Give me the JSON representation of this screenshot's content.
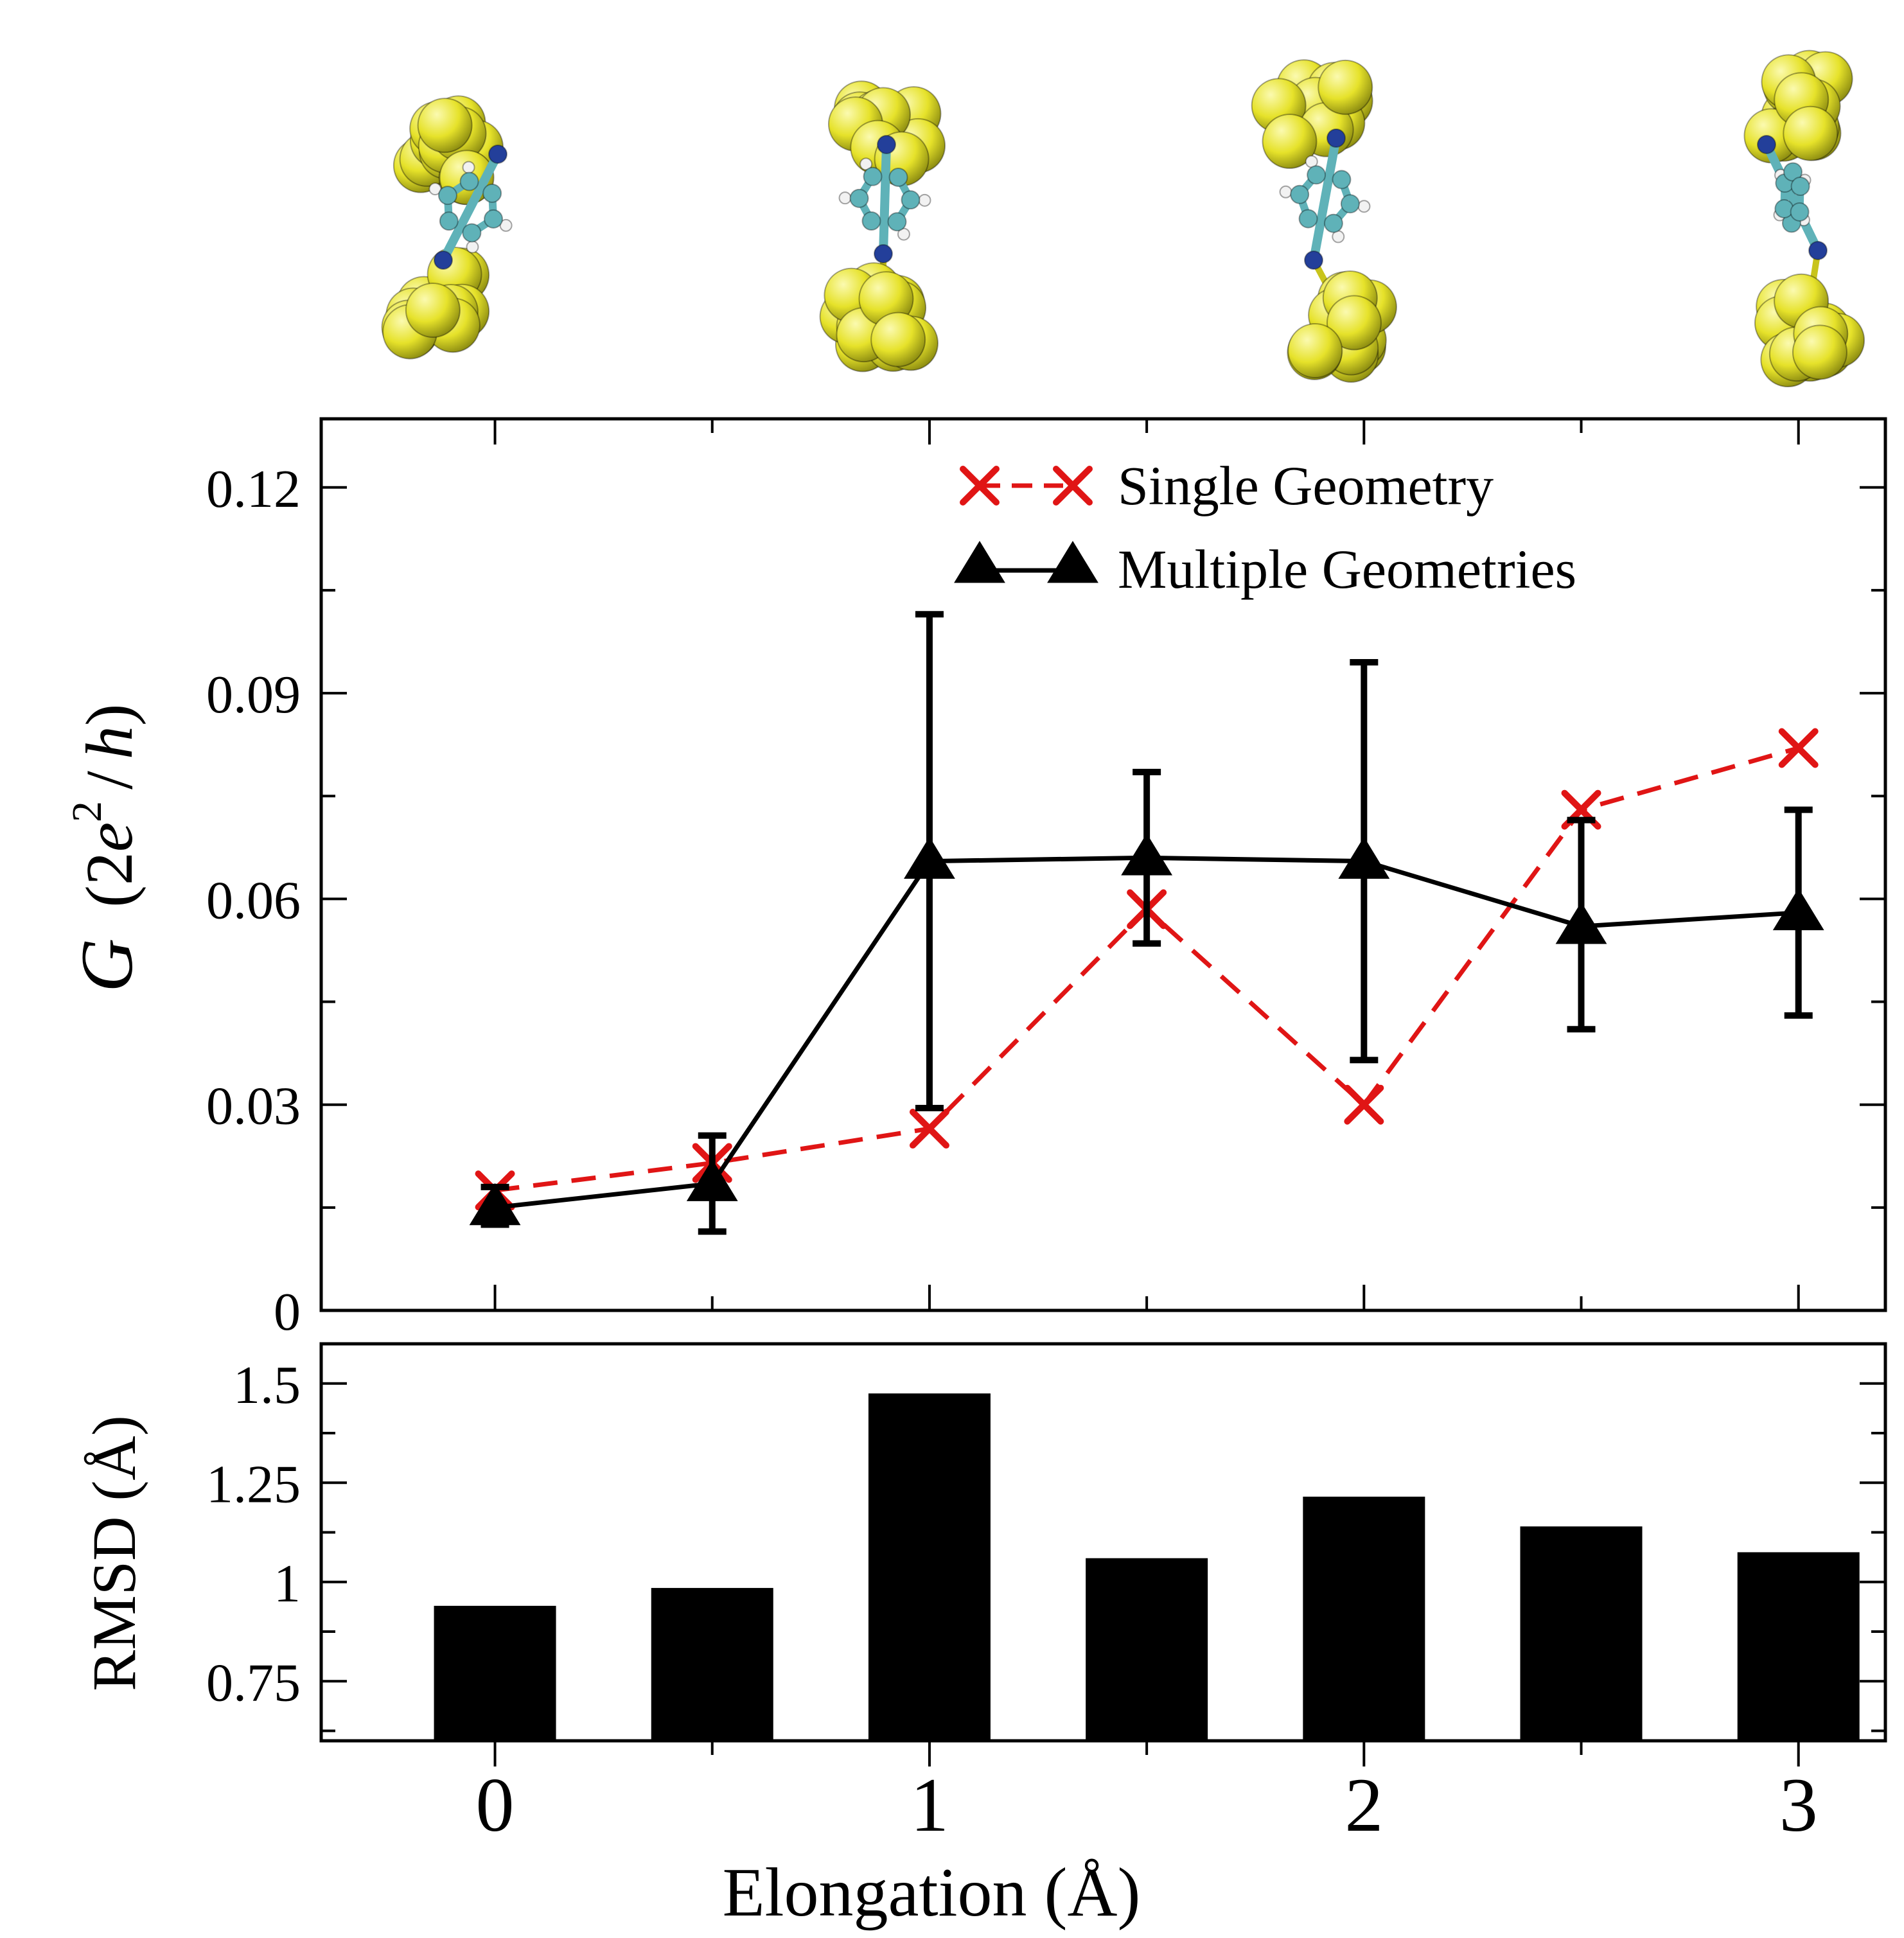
{
  "figure": {
    "molecule_images": [
      {
        "label": "junction snapshot 1"
      },
      {
        "label": "junction snapshot 2"
      },
      {
        "label": "junction snapshot 3"
      },
      {
        "label": "junction snapshot 4"
      }
    ],
    "colors": {
      "gold": "#e6e22a",
      "gold_dark": "#8a8a10",
      "gold_light": "#fbfab0",
      "carbon": "#5fb2b8",
      "nitrogen": "#233f9a",
      "hydrogen": "#f2f2f2",
      "single_series": "#e01515",
      "multiple_series": "#000000",
      "bar": "#000000"
    }
  },
  "chart_data": [
    {
      "type": "line",
      "ylabel_italic": "G",
      "ylabel_rest": "(2e²/h)",
      "ylabel_main": "(2",
      "ylabel_e": "e",
      "ylabel_exp": "2",
      "ylabel_slash": "/",
      "ylabel_h": "h",
      "ylabel_close": ")",
      "xlim": [
        -0.4,
        3.2
      ],
      "ylim": [
        0,
        0.13
      ],
      "x_major_ticks": [
        0,
        1,
        2,
        3
      ],
      "x_minor_ticks": [
        0.5,
        1.5,
        2.5
      ],
      "y_ticks": [
        0,
        0.015,
        0.03,
        0.045,
        0.06,
        0.075,
        0.09,
        0.105,
        0.12
      ],
      "y_tick_labels": [
        {
          "value": 0,
          "label": "0"
        },
        {
          "value": 0.03,
          "label": "0.03"
        },
        {
          "value": 0.06,
          "label": "0.06"
        },
        {
          "value": 0.09,
          "label": "0.09"
        },
        {
          "value": 0.12,
          "label": "0.12"
        }
      ],
      "legend_position": "top-right",
      "series": [
        {
          "name": "Single Geometry",
          "marker": "x",
          "line": "dashed",
          "x": [
            0,
            0.5,
            1,
            1.5,
            2,
            2.5,
            3
          ],
          "y": [
            0.0175,
            0.0215,
            0.0265,
            0.0585,
            0.03,
            0.073,
            0.082
          ]
        },
        {
          "name": "Multiple Geometries",
          "marker": "triangle",
          "line": "solid",
          "x": [
            0,
            0.5,
            1,
            1.5,
            2,
            2.5,
            3
          ],
          "y": [
            0.015,
            0.0185,
            0.0655,
            0.066,
            0.0655,
            0.056,
            0.058
          ],
          "err_low": [
            0.0125,
            0.0115,
            0.0295,
            0.0535,
            0.0365,
            0.041,
            0.043
          ],
          "err_high": [
            0.018,
            0.0255,
            0.1015,
            0.0785,
            0.0945,
            0.0715,
            0.073
          ]
        }
      ]
    },
    {
      "type": "bar",
      "ylabel": "RMSD (Å)",
      "xlabel": "Elongation (Å)",
      "xlim": [
        -0.4,
        3.2
      ],
      "ylim": [
        0.6,
        1.6
      ],
      "x": [
        0,
        0.5,
        1,
        1.5,
        2,
        2.5,
        3
      ],
      "values": [
        0.94,
        0.985,
        1.475,
        1.06,
        1.215,
        1.14,
        1.075
      ],
      "x_tick_labels": [
        "0",
        "1",
        "2",
        "3"
      ],
      "y_ticks": [
        0.625,
        0.75,
        0.875,
        1.0,
        1.125,
        1.25,
        1.375,
        1.5
      ],
      "y_tick_labels": [
        {
          "value": 0.75,
          "label": "0.75"
        },
        {
          "value": 1.0,
          "label": "1"
        },
        {
          "value": 1.25,
          "label": "1.25"
        },
        {
          "value": 1.5,
          "label": "1.5"
        }
      ]
    }
  ]
}
